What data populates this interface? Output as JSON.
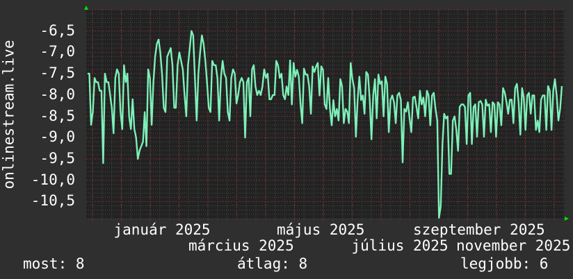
{
  "chart_data": {
    "type": "line",
    "title": "",
    "ylabel": "onlinestream.live",
    "xlabel": "",
    "ylim": [
      -10.9,
      -6.0
    ],
    "y_ticks": [
      -6.5,
      -7.0,
      -7.5,
      -8.0,
      -8.5,
      -9.0,
      -9.5,
      -10.0,
      -10.5
    ],
    "y_tick_labels": [
      "-6,5",
      "-7,0",
      "-7,5",
      "-8,0",
      "-8,5",
      "-9,0",
      "-9,5",
      "-10,0",
      "-10,5"
    ],
    "x_tick_labels": [
      "január 2025",
      "március 2025",
      "május 2025",
      "július 2025",
      "szeptember 2025",
      "november 2025"
    ],
    "grid": true,
    "colors": {
      "line": "#7df0b8",
      "background": "#2f2f2f",
      "plot_background": "#222222",
      "major_grid": "#7a3030",
      "minor_grid": "#4a4a4a",
      "arrow": "#00e000"
    },
    "series": [
      {
        "values": [
          -7.5,
          -7.5,
          -8.7,
          -8.4,
          -7.6,
          -7.7,
          -7.7,
          -7.9,
          -7.9,
          -9.6,
          -7.5,
          -7.7,
          -7.7,
          -8.0,
          -8.3,
          -8.9,
          -7.6,
          -7.4,
          -7.5,
          -8.4,
          -8.8,
          -7.3,
          -7.7,
          -7.5,
          -8.5,
          -8.8,
          -8.1,
          -8.8,
          -9.0,
          -9.5,
          -9.3,
          -9.2,
          -9.1,
          -8.4,
          -9.2,
          -7.4,
          -7.6,
          -8.7,
          -7.7,
          -7.1,
          -6.8,
          -6.7,
          -7.0,
          -7.5,
          -8.3,
          -8.4,
          -7.1,
          -7.0,
          -6.9,
          -7.3,
          -8.3,
          -8.3,
          -7.3,
          -7.0,
          -7.2,
          -7.4,
          -8.0,
          -8.5,
          -7.3,
          -6.9,
          -6.5,
          -6.6,
          -7.6,
          -8.6,
          -7.5,
          -7.0,
          -6.6,
          -6.8,
          -7.2,
          -7.7,
          -8.3,
          -8.4,
          -7.2,
          -7.3,
          -7.3,
          -7.6,
          -8.6,
          -7.6,
          -7.2,
          -7.5,
          -7.6,
          -8.4,
          -8.6,
          -7.6,
          -7.4,
          -7.5,
          -8.2,
          -8.0,
          -7.7,
          -7.6,
          -7.7,
          -9.0,
          -7.7,
          -7.6,
          -8.5,
          -7.4,
          -7.3,
          -7.8,
          -8.0,
          -7.9,
          -8.0,
          -7.8,
          -7.4,
          -7.6,
          -7.5,
          -8.1,
          -8.1,
          -8.0,
          -8.0,
          -7.2,
          -7.3,
          -7.6,
          -7.5,
          -8.0,
          -8.1,
          -7.8,
          -8.0,
          -7.19,
          -8.22,
          -7.25,
          -7.57,
          -7.41,
          -7.57,
          -8.22,
          -8.66,
          -7.38,
          -7.52,
          -7.52,
          -7.79,
          -8.44,
          -7.33,
          -7.46,
          -7.33,
          -7.25,
          -8.01,
          -7.33,
          -7.41,
          -8.22,
          -8.33,
          -7.6,
          -8.33,
          -8.71,
          -8.12,
          -8.5,
          -8.33,
          -8.6,
          -7.63,
          -7.79,
          -8.66,
          -8.33,
          -8.39,
          -8.66,
          -7.25,
          -7.63,
          -7.84,
          -8.98,
          -8.12,
          -7.57,
          -8.12,
          -8.01,
          -8.44,
          -7.46,
          -7.52,
          -8.12,
          -9.04,
          -8.01,
          -7.63,
          -8.55,
          -7.52,
          -7.74,
          -7.68,
          -8.5,
          -7.57,
          -7.74,
          -8.87,
          -8.12,
          -8.01,
          -8.17,
          -8.66,
          -8.01,
          -7.95,
          -8.12,
          -9.58,
          -8.33,
          -8.39,
          -8.17,
          -8.55,
          -8.87,
          -8.06,
          -8.04,
          -8.28,
          -8.55,
          -7.9,
          -8.22,
          -8.06,
          -8.5,
          -7.9,
          -8.01,
          -8.71,
          -8.01,
          -7.95,
          -8.33,
          -8.6,
          -10.88,
          -10.61,
          -9.15,
          -8.44,
          -8.55,
          -8.5,
          -9.85,
          -9.85,
          -8.6,
          -8.5,
          -8.82,
          -9.31,
          -8.28,
          -8.22,
          -8.22,
          -8.28,
          -9.15,
          -8.01,
          -7.95,
          -9.15,
          -8.28,
          -8.22,
          -8.98,
          -8.17,
          -8.14,
          -8.22,
          -8.98,
          -8.11,
          -8.25,
          -8.22,
          -8.87,
          -8.17,
          -8.22,
          -8.98,
          -8.17,
          -8.22,
          -8.71,
          -7.84,
          -7.95,
          -8.17,
          -8.44,
          -8.11,
          -8.11,
          -8.66,
          -7.84,
          -7.74,
          -8.17,
          -8.93,
          -7.84,
          -8.06,
          -8.82,
          -8.01,
          -7.95,
          -8.44,
          -8.01,
          -8.01,
          -8.82,
          -8.6,
          -8.87,
          -8.11,
          -8.01,
          -8.01,
          -8.82,
          -7.79,
          -7.9,
          -8.82,
          -7.9,
          -7.63,
          -8.01,
          -8.6,
          -8.33,
          -7.79
        ]
      }
    ]
  },
  "legend": {
    "current": "most: 8",
    "average": "átlag: 8",
    "best": "legjobb: 6"
  }
}
